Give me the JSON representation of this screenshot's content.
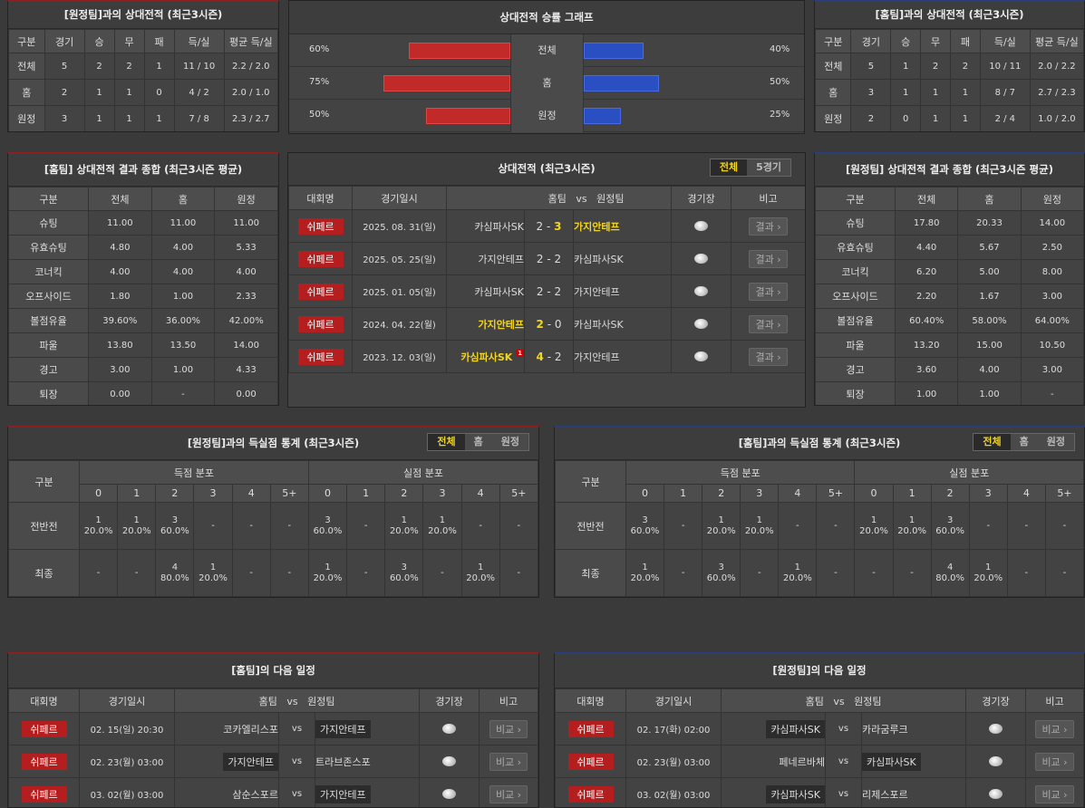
{
  "away_h2h": {
    "title": "[원정팀]과의 상대전적 (최근3시즌)",
    "headers": [
      "구분",
      "경기",
      "승",
      "무",
      "패",
      "득/실",
      "평균 득/실"
    ],
    "rows": [
      [
        "전체",
        "5",
        "2",
        "2",
        "1",
        "11 / 10",
        "2.2 / 2.0"
      ],
      [
        "홈",
        "2",
        "1",
        "1",
        "0",
        "4 / 2",
        "2.0 / 1.0"
      ],
      [
        "원정",
        "3",
        "1",
        "1",
        "1",
        "7 / 8",
        "2.3 / 2.7"
      ]
    ]
  },
  "graph": {
    "title": "상대전적 승률 그래프",
    "rows": [
      {
        "label": "전체",
        "left": "60%",
        "right": "40%",
        "lv": 60,
        "rv": 40
      },
      {
        "label": "홈",
        "left": "75%",
        "right": "50%",
        "lv": 75,
        "rv": 50
      },
      {
        "label": "원정",
        "left": "50%",
        "right": "25%",
        "lv": 50,
        "rv": 25
      }
    ]
  },
  "home_h2h": {
    "title": "[홈팀]과의 상대전적 (최근3시즌)",
    "headers": [
      "구분",
      "경기",
      "승",
      "무",
      "패",
      "득/실",
      "평균 득/실"
    ],
    "rows": [
      [
        "전체",
        "5",
        "1",
        "2",
        "2",
        "10 / 11",
        "2.0 / 2.2"
      ],
      [
        "홈",
        "3",
        "1",
        "1",
        "1",
        "8 / 7",
        "2.7 / 2.3"
      ],
      [
        "원정",
        "2",
        "0",
        "1",
        "1",
        "2 / 4",
        "1.0 / 2.0"
      ]
    ]
  },
  "home_summary": {
    "title": "[홈팀] 상대전적 결과 종합 (최근3시즌 평균)",
    "headers": [
      "구분",
      "전체",
      "홈",
      "원정"
    ],
    "rows": [
      [
        "슈팅",
        "11.00",
        "11.00",
        "11.00"
      ],
      [
        "유효슈팅",
        "4.80",
        "4.00",
        "5.33"
      ],
      [
        "코너킥",
        "4.00",
        "4.00",
        "4.00"
      ],
      [
        "오프사이드",
        "1.80",
        "1.00",
        "2.33"
      ],
      [
        "볼점유율",
        "39.60%",
        "36.00%",
        "42.00%"
      ],
      [
        "파울",
        "13.80",
        "13.50",
        "14.00"
      ],
      [
        "경고",
        "3.00",
        "1.00",
        "4.33"
      ],
      [
        "퇴장",
        "0.00",
        "-",
        "0.00"
      ]
    ]
  },
  "away_summary": {
    "title": "[원정팀] 상대전적 결과 종합 (최근3시즌 평균)",
    "headers": [
      "구분",
      "전체",
      "홈",
      "원정"
    ],
    "rows": [
      [
        "슈팅",
        "17.80",
        "20.33",
        "14.00"
      ],
      [
        "유효슈팅",
        "4.40",
        "5.67",
        "2.50"
      ],
      [
        "코너킥",
        "6.20",
        "5.00",
        "8.00"
      ],
      [
        "오프사이드",
        "2.20",
        "1.67",
        "3.00"
      ],
      [
        "볼점유율",
        "60.40%",
        "58.00%",
        "64.00%"
      ],
      [
        "파울",
        "13.20",
        "15.00",
        "10.50"
      ],
      [
        "경고",
        "3.60",
        "4.00",
        "3.00"
      ],
      [
        "퇴장",
        "1.00",
        "1.00",
        "-"
      ]
    ]
  },
  "matches": {
    "title": "상대전적 (최근3시즌)",
    "tabs": [
      "전체",
      "5경기"
    ],
    "headers": {
      "comp": "대회명",
      "date": "경기일시",
      "home": "홈팀",
      "vs": "vs",
      "away": "원정팀",
      "venue": "경기장",
      "note": "비고"
    },
    "result_label": "결과 ›",
    "rows": [
      {
        "comp": "쉬페르",
        "date": "2025. 08. 31(일)",
        "home": "카심파사SK",
        "hs": "2",
        "as": "3",
        "away": "가지안테프",
        "win": "away",
        "card": ""
      },
      {
        "comp": "쉬페르",
        "date": "2025. 05. 25(일)",
        "home": "가지안테프",
        "hs": "2",
        "as": "2",
        "away": "카심파사SK",
        "win": "",
        "card": ""
      },
      {
        "comp": "쉬페르",
        "date": "2025. 01. 05(일)",
        "home": "카심파사SK",
        "hs": "2",
        "as": "2",
        "away": "가지안테프",
        "win": "",
        "card": ""
      },
      {
        "comp": "쉬페르",
        "date": "2024. 04. 22(월)",
        "home": "가지안테프",
        "hs": "2",
        "as": "0",
        "away": "카심파사SK",
        "win": "home",
        "card": ""
      },
      {
        "comp": "쉬페르",
        "date": "2023. 12. 03(일)",
        "home": "카심파사SK",
        "hs": "4",
        "as": "2",
        "away": "가지안테프",
        "win": "home",
        "card": "1"
      }
    ]
  },
  "away_goals": {
    "title": "[원정팀]과의 득실점 통계 (최근3시즌)",
    "tabs": [
      "전체",
      "홈",
      "원정"
    ],
    "col": "구분",
    "scored": "득점 분포",
    "conceded": "실점 분포",
    "nums": [
      "0",
      "1",
      "2",
      "3",
      "4",
      "5+",
      "0",
      "1",
      "2",
      "3",
      "4",
      "5+"
    ],
    "rows": [
      {
        "label": "전반전",
        "cells": [
          [
            "1",
            "20.0%"
          ],
          [
            "1",
            "20.0%"
          ],
          [
            "3",
            "60.0%"
          ],
          [
            "-",
            ""
          ],
          [
            "-",
            ""
          ],
          [
            "-",
            ""
          ],
          [
            "3",
            "60.0%"
          ],
          [
            "-",
            ""
          ],
          [
            "1",
            "20.0%"
          ],
          [
            "1",
            "20.0%"
          ],
          [
            "-",
            ""
          ],
          [
            "-",
            ""
          ]
        ]
      },
      {
        "label": "최종",
        "cells": [
          [
            "-",
            ""
          ],
          [
            "-",
            ""
          ],
          [
            "4",
            "80.0%"
          ],
          [
            "1",
            "20.0%"
          ],
          [
            "-",
            ""
          ],
          [
            "-",
            ""
          ],
          [
            "1",
            "20.0%"
          ],
          [
            "-",
            ""
          ],
          [
            "3",
            "60.0%"
          ],
          [
            "-",
            ""
          ],
          [
            "1",
            "20.0%"
          ],
          [
            "-",
            ""
          ]
        ]
      }
    ]
  },
  "home_goals": {
    "title": "[홈팀]과의 득실점 통계 (최근3시즌)",
    "tabs": [
      "전체",
      "홈",
      "원정"
    ],
    "col": "구분",
    "scored": "득점 분포",
    "conceded": "실점 분포",
    "nums": [
      "0",
      "1",
      "2",
      "3",
      "4",
      "5+",
      "0",
      "1",
      "2",
      "3",
      "4",
      "5+"
    ],
    "rows": [
      {
        "label": "전반전",
        "cells": [
          [
            "3",
            "60.0%"
          ],
          [
            "-",
            ""
          ],
          [
            "1",
            "20.0%"
          ],
          [
            "1",
            "20.0%"
          ],
          [
            "-",
            ""
          ],
          [
            "-",
            ""
          ],
          [
            "1",
            "20.0%"
          ],
          [
            "1",
            "20.0%"
          ],
          [
            "3",
            "60.0%"
          ],
          [
            "-",
            ""
          ],
          [
            "-",
            ""
          ],
          [
            "-",
            ""
          ]
        ]
      },
      {
        "label": "최종",
        "cells": [
          [
            "1",
            "20.0%"
          ],
          [
            "-",
            ""
          ],
          [
            "3",
            "60.0%"
          ],
          [
            "-",
            ""
          ],
          [
            "1",
            "20.0%"
          ],
          [
            "-",
            ""
          ],
          [
            "-",
            ""
          ],
          [
            "-",
            ""
          ],
          [
            "4",
            "80.0%"
          ],
          [
            "1",
            "20.0%"
          ],
          [
            "-",
            ""
          ],
          [
            "-",
            ""
          ]
        ]
      }
    ]
  },
  "home_next": {
    "title": "[홈팀]의 다음 일정",
    "headers": {
      "comp": "대회명",
      "date": "경기일시",
      "home": "홈팀",
      "vs": "vs",
      "away": "원정팀",
      "venue": "경기장",
      "note": "비고"
    },
    "compare": "비교 ›",
    "rows": [
      {
        "comp": "쉬페르",
        "date": "02. 15(일) 20:30",
        "home": "코카엘리스포",
        "away": "가지안테프",
        "hl": "away"
      },
      {
        "comp": "쉬페르",
        "date": "02. 23(월) 03:00",
        "home": "가지안테프",
        "away": "트라브존스포",
        "hl": "home"
      },
      {
        "comp": "쉬페르",
        "date": "03. 02(월) 03:00",
        "home": "삼순스포르",
        "away": "가지안테프",
        "hl": "away"
      }
    ]
  },
  "away_next": {
    "title": "[원정팀]의 다음 일정",
    "headers": {
      "comp": "대회명",
      "date": "경기일시",
      "home": "홈팀",
      "vs": "vs",
      "away": "원정팀",
      "venue": "경기장",
      "note": "비고"
    },
    "compare": "비교 ›",
    "rows": [
      {
        "comp": "쉬페르",
        "date": "02. 17(화) 02:00",
        "home": "카심파사SK",
        "away": "카라굼루크",
        "hl": "home"
      },
      {
        "comp": "쉬페르",
        "date": "02. 23(월) 03:00",
        "home": "페네르바체",
        "away": "카심파사SK",
        "hl": "away"
      },
      {
        "comp": "쉬페르",
        "date": "03. 02(월) 03:00",
        "home": "카심파사SK",
        "away": "리제스포르",
        "hl": "home"
      }
    ]
  }
}
